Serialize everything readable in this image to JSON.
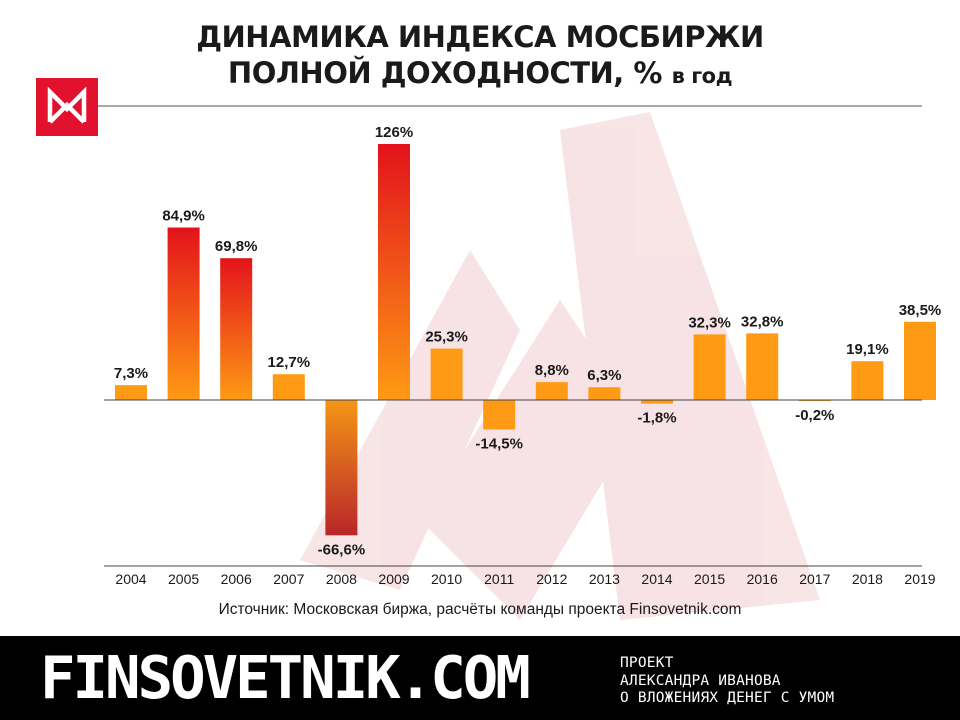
{
  "title": {
    "line1": "ДИНАМИКА ИНДЕКСА МОСБИРЖИ",
    "line2": "ПОЛНОЙ ДОХОДНОСТИ, %",
    "line2_unit": "в год"
  },
  "logo": {
    "icon": "moex-logo-icon",
    "color": "#e2122e"
  },
  "source": "Источник: Московская биржа, расчёты команды проекта Finsovetnik.com",
  "footer": {
    "brand": "FINSOVETNIK.COM",
    "tagline": [
      "ПРОЕКТ",
      "АЛЕКСАНДРА ИВАНОВА",
      "О ВЛОЖЕНИЯХ ДЕНЕГ С УМОМ"
    ]
  },
  "colors": {
    "bar_base": "#ff9a14",
    "bar_hot": "#e3121b",
    "bar_deep_negative": "#b8262a",
    "footer_bg": "#000000",
    "watermark": "#f3e6e6"
  },
  "chart_data": {
    "type": "bar",
    "title": "ДИНАМИКА ИНДЕКСА МОСБИРЖИ ПОЛНОЙ ДОХОДНОСТИ, % в год",
    "xlabel": "",
    "ylabel": "",
    "categories": [
      "2004",
      "2005",
      "2006",
      "2007",
      "2008",
      "2009",
      "2010",
      "2011",
      "2012",
      "2013",
      "2014",
      "2015",
      "2016",
      "2017",
      "2018",
      "2019"
    ],
    "values": [
      7.3,
      84.9,
      69.8,
      12.7,
      -66.6,
      126,
      25.3,
      -14.5,
      8.8,
      6.3,
      -1.8,
      32.3,
      32.8,
      -0.2,
      19.1,
      38.5
    ],
    "value_labels": [
      "7,3%",
      "84,9%",
      "69,8%",
      "12,7%",
      "-66,6%",
      "126%",
      "25,3%",
      "-14,5%",
      "8,8%",
      "6,3%",
      "-1,8%",
      "32,3%",
      "32,8%",
      "-0,2%",
      "19,1%",
      "38,5%"
    ],
    "ylim": [
      -82,
      130
    ],
    "grid": false,
    "legend": "none"
  }
}
